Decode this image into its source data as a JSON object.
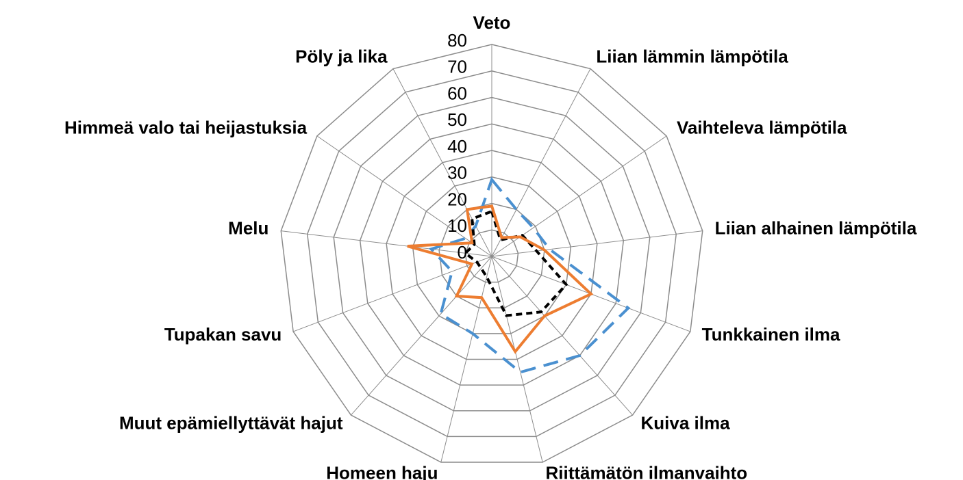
{
  "chart_data": {
    "type": "radar",
    "categories": [
      "Veto",
      "Liian lämmin lämpötila",
      "Vaihteleva lämpötila",
      "Liian alhainen lämpötila",
      "Tunkkainen ilma",
      "Kuiva ilma",
      "Riittämätön ilmanvaihto",
      "Homeen haju",
      "Muut epämiellyttävät hajut",
      "Tupakan savu",
      "Melu",
      "Himmeä valo tai heijastuksia",
      "Pöly ja lika"
    ],
    "series": [
      {
        "color": "#4a90d0",
        "dash": "dashed",
        "values": [
          29,
          20,
          19,
          22,
          55,
          50,
          45,
          30,
          29,
          16,
          23,
          12,
          13
        ]
      },
      {
        "color": "#000000",
        "dash": "dashed",
        "values": [
          17,
          7,
          14,
          17,
          30,
          28,
          23,
          8,
          6,
          6,
          10,
          8,
          16
        ]
      },
      {
        "color": "#ed7d31",
        "dash": "solid",
        "values": [
          19,
          8,
          13,
          20,
          40,
          30,
          37,
          16,
          20,
          8,
          32,
          9,
          20
        ]
      }
    ],
    "rlim": [
      0,
      80
    ],
    "rticks": [
      0,
      10,
      20,
      30,
      40,
      50,
      60,
      70,
      80
    ],
    "grid": true
  }
}
